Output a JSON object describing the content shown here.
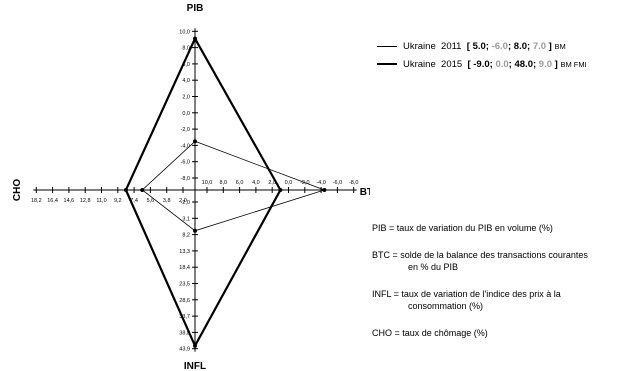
{
  "chart_data": {
    "type": "radar",
    "axes": [
      {
        "name": "PIB",
        "direction": "up",
        "ticks": [
          "10,0",
          "8,0",
          "6,0",
          "4,0",
          "2,0",
          "0,0",
          "-2,0",
          "-4,0",
          "-6,0",
          "-8,0"
        ],
        "range": [
          -10,
          10
        ]
      },
      {
        "name": "BTC",
        "direction": "right",
        "ticks": [
          "-8,0",
          "-6,0",
          "-4,0",
          "-2,0",
          "0,0",
          "2,0",
          "4,0",
          "6,0",
          "8,0",
          "10,0"
        ],
        "range": [
          -10,
          10
        ]
      },
      {
        "name": "INFL",
        "direction": "down",
        "ticks": [
          "43,9",
          "38,8",
          "33,7",
          "28,6",
          "23,5",
          "18,4",
          "13,3",
          "8,2",
          "3,1",
          "-2,0"
        ],
        "range": [
          49,
          -2
        ]
      },
      {
        "name": "CHO",
        "direction": "left",
        "ticks": [
          "18,2",
          "16,4",
          "14,6",
          "12,8",
          "11,0",
          "9,2",
          "7,4",
          "5,6",
          "3,8",
          "2,0"
        ],
        "range": [
          20,
          2
        ]
      }
    ],
    "series": [
      {
        "name": "Ukraine 2011",
        "PIB": 5.0,
        "BTC": -6.0,
        "INFL": 8.0,
        "CHO": 7.0,
        "sources": "BM",
        "line": "thin"
      },
      {
        "name": "Ukraine 2015",
        "PIB": -9.0,
        "BTC": 0.0,
        "INFL": 48.0,
        "CHO": 9.0,
        "sources": "BM  FMI",
        "line": "thick"
      }
    ]
  },
  "legend": {
    "rows": [
      {
        "country": "Ukraine",
        "year": "2011",
        "v1": "5.0",
        "v2": "-6.0",
        "v3": "8.0",
        "v4": "7.0",
        "sources": "BM"
      },
      {
        "country": "Ukraine",
        "year": "2015",
        "v1": "-9.0",
        "v2": "0.0",
        "v3": "48.0",
        "v4": "9.0",
        "sources": "BM  FMI"
      }
    ]
  },
  "definitions": [
    {
      "line1": "PIB = taux de variation du PIB en volume (%)",
      "line2": ""
    },
    {
      "line1": "BTC = solde de la balance des transactions courantes",
      "line2": "en % du PIB"
    },
    {
      "line1": "INFL = taux de variation de l'indice des prix à la",
      "line2": "consommation (%)"
    },
    {
      "line1": "CHO = taux de chômage (%)",
      "line2": ""
    }
  ]
}
